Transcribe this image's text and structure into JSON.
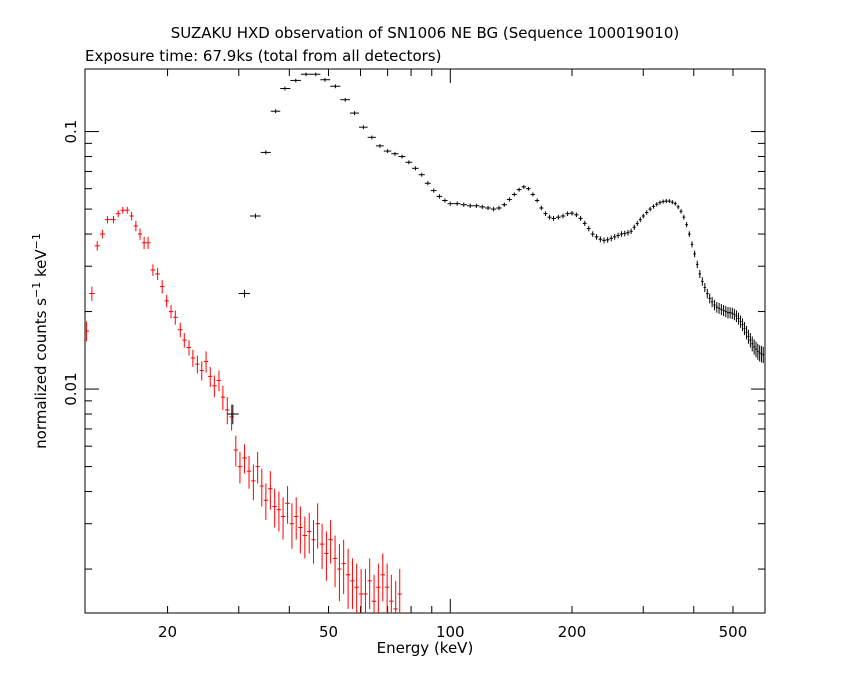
{
  "chart_data": {
    "type": "scatter",
    "title": "SUZAKU HXD observation of SN1006 NE BG (Sequence 100019010)",
    "subtitle": "Exposure time: 67.9ks (total from all detectors)",
    "xlabel": "Energy (keV)",
    "ylabel_parts": {
      "base": "normalized counts s",
      "exp1": "−1",
      "mid": " keV",
      "exp2": "−1"
    },
    "x_scale": "log",
    "y_scale": "log",
    "xlim": [
      12.5,
      600
    ],
    "ylim": [
      0.00135,
      0.175
    ],
    "x_ticks": [
      {
        "value": 20,
        "label": "20"
      },
      {
        "value": 50,
        "label": "50"
      },
      {
        "value": 100,
        "label": "100"
      },
      {
        "value": 200,
        "label": "200"
      },
      {
        "value": 500,
        "label": "500"
      }
    ],
    "y_ticks": [
      {
        "value": 0.01,
        "label": "0.01"
      },
      {
        "value": 0.1,
        "label": "0.1"
      }
    ],
    "series": [
      {
        "color": "#ff0000",
        "points": [
          [
            12.6,
            0.0168,
            0.0015
          ],
          [
            13.0,
            0.0235,
            0.0015
          ],
          [
            13.4,
            0.036,
            0.0015
          ],
          [
            13.8,
            0.04,
            0.0015
          ],
          [
            14.2,
            0.0455,
            0.0015
          ],
          [
            14.7,
            0.0455,
            0.0015
          ],
          [
            15.1,
            0.048,
            0.0015
          ],
          [
            15.5,
            0.0495,
            0.0015
          ],
          [
            15.9,
            0.0495,
            0.0015
          ],
          [
            16.3,
            0.047,
            0.0018
          ],
          [
            16.7,
            0.043,
            0.002
          ],
          [
            17.1,
            0.04,
            0.002
          ],
          [
            17.5,
            0.037,
            0.002
          ],
          [
            17.9,
            0.037,
            0.002
          ],
          [
            18.4,
            0.029,
            0.0015
          ],
          [
            18.9,
            0.028,
            0.0015
          ],
          [
            19.4,
            0.025,
            0.0015
          ],
          [
            19.9,
            0.022,
            0.0012
          ],
          [
            20.4,
            0.02,
            0.0012
          ],
          [
            20.9,
            0.019,
            0.0012
          ],
          [
            21.5,
            0.017,
            0.0011
          ],
          [
            22.0,
            0.0155,
            0.001
          ],
          [
            22.6,
            0.0145,
            0.001
          ],
          [
            23.1,
            0.0132,
            0.001
          ],
          [
            23.7,
            0.0125,
            0.001
          ],
          [
            24.3,
            0.0118,
            0.001
          ],
          [
            24.9,
            0.0128,
            0.0012
          ],
          [
            25.5,
            0.0112,
            0.001
          ],
          [
            26.1,
            0.0103,
            0.001
          ],
          [
            26.8,
            0.0108,
            0.001
          ],
          [
            27.4,
            0.0093,
            0.001
          ],
          [
            28.1,
            0.0083,
            0.001
          ],
          [
            28.8,
            0.0078,
            0.0009
          ],
          [
            29.5,
            0.0058,
            0.0008
          ],
          [
            30.2,
            0.005,
            0.0007
          ],
          [
            31.0,
            0.0054,
            0.0007
          ],
          [
            31.8,
            0.0048,
            0.0007
          ],
          [
            32.6,
            0.0044,
            0.0007
          ],
          [
            33.4,
            0.005,
            0.0007
          ],
          [
            34.2,
            0.0042,
            0.0007
          ],
          [
            35.0,
            0.0037,
            0.0006
          ],
          [
            35.9,
            0.0041,
            0.0007
          ],
          [
            36.8,
            0.0035,
            0.0006
          ],
          [
            37.7,
            0.0034,
            0.0006
          ],
          [
            38.6,
            0.0032,
            0.0006
          ],
          [
            39.6,
            0.0036,
            0.0006
          ],
          [
            40.6,
            0.003,
            0.0006
          ],
          [
            41.6,
            0.0032,
            0.0006
          ],
          [
            42.6,
            0.0029,
            0.0006
          ],
          [
            43.7,
            0.0027,
            0.0005
          ],
          [
            44.8,
            0.0028,
            0.0005
          ],
          [
            45.9,
            0.0026,
            0.0005
          ],
          [
            47.0,
            0.003,
            0.0006
          ],
          [
            48.2,
            0.0025,
            0.0005
          ],
          [
            49.4,
            0.0023,
            0.0005
          ],
          [
            50.6,
            0.0026,
            0.0005
          ],
          [
            51.9,
            0.0022,
            0.0005
          ],
          [
            53.2,
            0.002,
            0.0005
          ],
          [
            54.5,
            0.0021,
            0.0005
          ],
          [
            55.9,
            0.0019,
            0.0005
          ],
          [
            57.3,
            0.0018,
            0.0004
          ],
          [
            58.7,
            0.0017,
            0.0004
          ],
          [
            60.2,
            0.0016,
            0.0004
          ],
          [
            61.7,
            0.0016,
            0.0004
          ],
          [
            63.2,
            0.0018,
            0.0004
          ],
          [
            64.8,
            0.0015,
            0.0004
          ],
          [
            66.4,
            0.0017,
            0.0004
          ],
          [
            68.1,
            0.0019,
            0.0004
          ],
          [
            69.8,
            0.0017,
            0.0004
          ],
          [
            71.5,
            0.0015,
            0.0004
          ],
          [
            73.3,
            0.0014,
            0.0004
          ],
          [
            75.0,
            0.0016,
            0.0004
          ]
        ]
      },
      {
        "color": "#000000",
        "points": [
          [
            29.0,
            0.008,
            0.0007
          ],
          [
            31.0,
            0.0235,
            0.0008
          ],
          [
            33.0,
            0.047,
            0.001
          ],
          [
            35.0,
            0.083,
            0.0015
          ],
          [
            37.0,
            0.12,
            0.002
          ],
          [
            39.0,
            0.147,
            0.0025
          ],
          [
            41.5,
            0.158,
            0.0025
          ],
          [
            44.0,
            0.167,
            0.0025
          ],
          [
            46.5,
            0.167,
            0.0025
          ],
          [
            49.0,
            0.159,
            0.0025
          ],
          [
            52.0,
            0.15,
            0.0025
          ],
          [
            55.0,
            0.133,
            0.002
          ],
          [
            58.0,
            0.118,
            0.002
          ],
          [
            61.0,
            0.104,
            0.0018
          ],
          [
            64.0,
            0.095,
            0.0015
          ],
          [
            67.0,
            0.088,
            0.0015
          ],
          [
            70.0,
            0.084,
            0.0015
          ],
          [
            73.0,
            0.082,
            0.0014
          ],
          [
            76.0,
            0.08,
            0.0014
          ],
          [
            79.0,
            0.076,
            0.0013
          ],
          [
            82.0,
            0.072,
            0.0013
          ],
          [
            85.0,
            0.068,
            0.0012
          ],
          [
            88.0,
            0.063,
            0.0012
          ],
          [
            91.0,
            0.059,
            0.0011
          ],
          [
            94.0,
            0.056,
            0.0011
          ],
          [
            97.0,
            0.054,
            0.001
          ],
          [
            100.0,
            0.0525,
            0.001
          ],
          [
            104.0,
            0.0525,
            0.001
          ],
          [
            108.0,
            0.052,
            0.001
          ],
          [
            112.0,
            0.0515,
            0.001
          ],
          [
            116.0,
            0.0515,
            0.001
          ],
          [
            120.0,
            0.051,
            0.001
          ],
          [
            124.0,
            0.0505,
            0.001
          ],
          [
            128.0,
            0.05,
            0.001
          ],
          [
            132.0,
            0.0505,
            0.001
          ],
          [
            136.0,
            0.052,
            0.001
          ],
          [
            140.0,
            0.0545,
            0.001
          ],
          [
            144.0,
            0.057,
            0.001
          ],
          [
            148.0,
            0.0595,
            0.001
          ],
          [
            152.0,
            0.061,
            0.001
          ],
          [
            156.0,
            0.06,
            0.001
          ],
          [
            160.0,
            0.057,
            0.001
          ],
          [
            164.0,
            0.054,
            0.001
          ],
          [
            168.0,
            0.0505,
            0.001
          ],
          [
            172.0,
            0.048,
            0.001
          ],
          [
            176.0,
            0.0465,
            0.001
          ],
          [
            180.0,
            0.046,
            0.001
          ],
          [
            185.0,
            0.0465,
            0.001
          ],
          [
            190.0,
            0.047,
            0.001
          ],
          [
            195.0,
            0.048,
            0.001
          ],
          [
            200.0,
            0.0482,
            0.001
          ],
          [
            205.0,
            0.0475,
            0.001
          ],
          [
            210.0,
            0.046,
            0.001
          ],
          [
            215.0,
            0.044,
            0.001
          ],
          [
            220.0,
            0.042,
            0.001
          ],
          [
            225.0,
            0.04,
            0.001
          ],
          [
            230.0,
            0.039,
            0.001
          ],
          [
            235.0,
            0.0382,
            0.001
          ],
          [
            240.0,
            0.0378,
            0.001
          ],
          [
            245.0,
            0.038,
            0.001
          ],
          [
            250.0,
            0.0385,
            0.001
          ],
          [
            255.0,
            0.039,
            0.001
          ],
          [
            260.0,
            0.0395,
            0.001
          ],
          [
            265.0,
            0.04,
            0.001
          ],
          [
            270.0,
            0.0402,
            0.001
          ],
          [
            275.0,
            0.0405,
            0.001
          ],
          [
            280.0,
            0.041,
            0.001
          ],
          [
            285.0,
            0.0425,
            0.001
          ],
          [
            290.0,
            0.044,
            0.001
          ],
          [
            295.0,
            0.0455,
            0.001
          ],
          [
            300.0,
            0.047,
            0.001
          ],
          [
            306.0,
            0.0485,
            0.001
          ],
          [
            312.0,
            0.05,
            0.001
          ],
          [
            318.0,
            0.0512,
            0.001
          ],
          [
            324.0,
            0.0522,
            0.001
          ],
          [
            330.0,
            0.053,
            0.001
          ],
          [
            336.0,
            0.0535,
            0.001
          ],
          [
            342.0,
            0.0537,
            0.001
          ],
          [
            348.0,
            0.0537,
            0.001
          ],
          [
            354.0,
            0.0532,
            0.001
          ],
          [
            360.0,
            0.0525,
            0.001
          ],
          [
            366.0,
            0.051,
            0.001
          ],
          [
            372.0,
            0.049,
            0.001
          ],
          [
            378.0,
            0.0465,
            0.001
          ],
          [
            384.0,
            0.0435,
            0.001
          ],
          [
            390.0,
            0.04,
            0.001
          ],
          [
            396.0,
            0.0365,
            0.001
          ],
          [
            402.0,
            0.0335,
            0.001
          ],
          [
            408.0,
            0.0305,
            0.001
          ],
          [
            414.0,
            0.028,
            0.001
          ],
          [
            420.0,
            0.0262,
            0.001
          ],
          [
            426.0,
            0.0248,
            0.001
          ],
          [
            432.0,
            0.0235,
            0.001
          ],
          [
            438.0,
            0.0225,
            0.001
          ],
          [
            444.0,
            0.0218,
            0.001
          ],
          [
            450.0,
            0.0212,
            0.001
          ],
          [
            456.0,
            0.0208,
            0.001
          ],
          [
            462.0,
            0.0206,
            0.001
          ],
          [
            468.0,
            0.0204,
            0.001
          ],
          [
            474.0,
            0.0202,
            0.001
          ],
          [
            480.0,
            0.02,
            0.001
          ],
          [
            486.0,
            0.0198,
            0.001
          ],
          [
            492.0,
            0.0198,
            0.001
          ],
          [
            498.0,
            0.0197,
            0.001
          ],
          [
            504.0,
            0.0195,
            0.001
          ],
          [
            510.0,
            0.0192,
            0.001
          ],
          [
            516.0,
            0.0188,
            0.001
          ],
          [
            522.0,
            0.0183,
            0.001
          ],
          [
            528.0,
            0.0178,
            0.001
          ],
          [
            534.0,
            0.0172,
            0.001
          ],
          [
            540.0,
            0.0166,
            0.001
          ],
          [
            546.0,
            0.016,
            0.001
          ],
          [
            552.0,
            0.0155,
            0.001
          ],
          [
            558.0,
            0.015,
            0.001
          ],
          [
            564.0,
            0.0146,
            0.001
          ],
          [
            570.0,
            0.0143,
            0.001
          ],
          [
            576.0,
            0.014,
            0.001
          ],
          [
            582.0,
            0.0138,
            0.001
          ],
          [
            588.0,
            0.0137,
            0.001
          ],
          [
            594.0,
            0.0136,
            0.001
          ]
        ]
      }
    ]
  }
}
